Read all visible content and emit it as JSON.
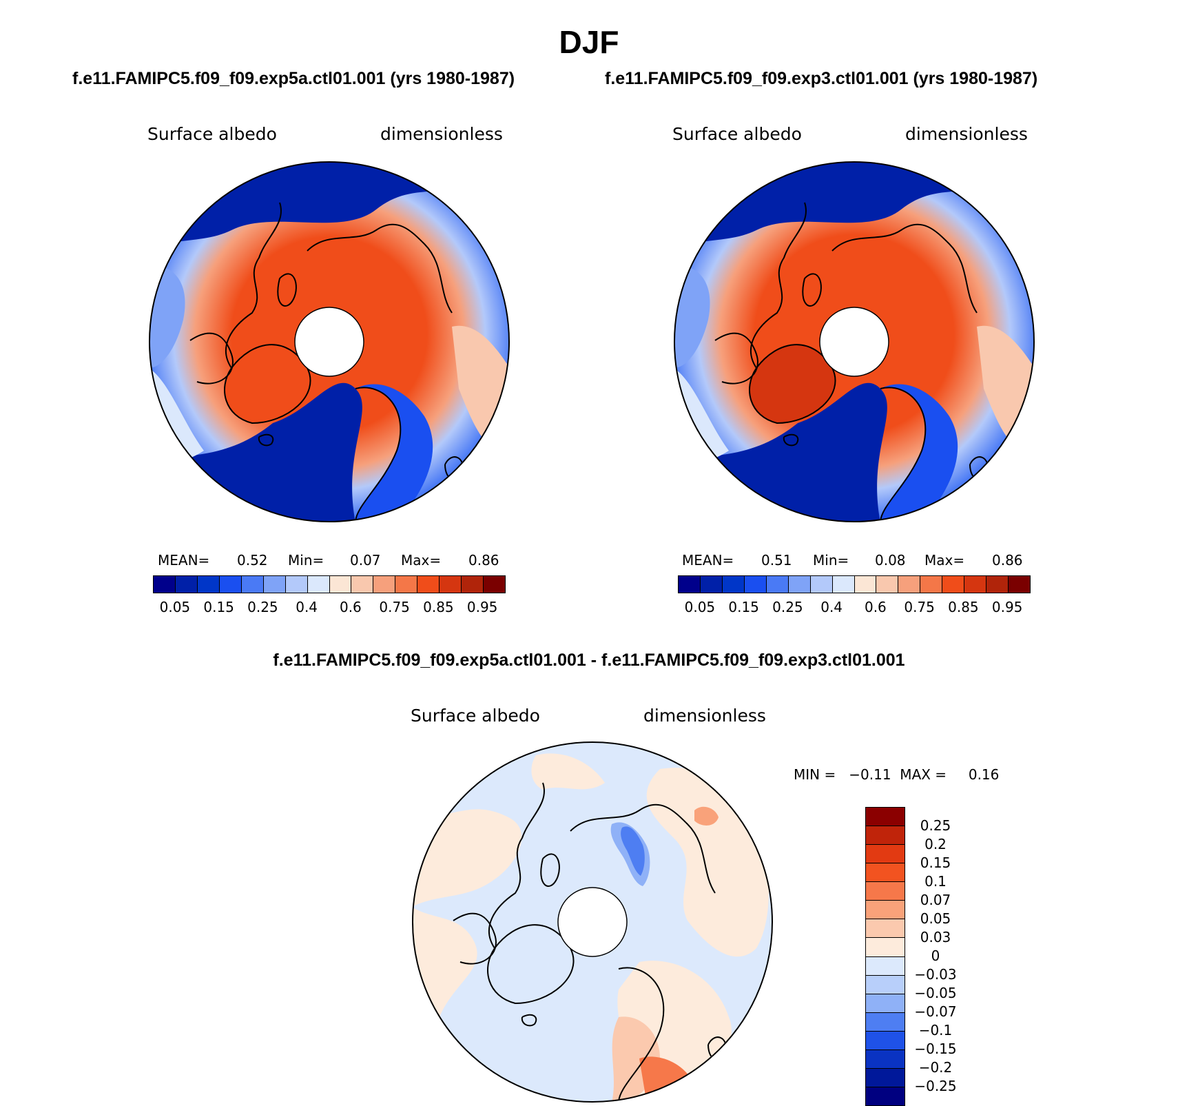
{
  "figure": {
    "season": "DJF",
    "diff_title": "f.e11.FAMIPC5.f09_f09.exp5a.ctl01.001 - f.e11.FAMIPC5.f09_f09.exp3.ctl01.001"
  },
  "panels": [
    {
      "case": "f.e11.FAMIPC5.f09_f09.exp5a.ctl01.001 (yrs 1980-1987)",
      "variable": "Surface albedo",
      "units": "dimensionless",
      "mean_label": "MEAN=",
      "mean": "0.52",
      "min_label": "Min=",
      "min": "0.07",
      "max_label": "Max=",
      "max": "0.86"
    },
    {
      "case": "f.e11.FAMIPC5.f09_f09.exp3.ctl01.001 (yrs 1980-1987)",
      "variable": "Surface albedo",
      "units": "dimensionless",
      "mean_label": "MEAN=",
      "mean": "0.51",
      "min_label": "Min=",
      "min": "0.08",
      "max_label": "Max=",
      "max": "0.86"
    }
  ],
  "diff_panel": {
    "variable": "Surface albedo",
    "units": "dimensionless",
    "stats": "MIN =   −0.11  MAX =     0.16"
  },
  "colorbar_abs": {
    "labels": [
      "0.05",
      "0.15",
      "0.25",
      "0.4",
      "0.6",
      "0.75",
      "0.85",
      "0.95"
    ],
    "colors": [
      "#00008b",
      "#0020a8",
      "#0036c8",
      "#1a4ff0",
      "#4a7af5",
      "#7fa3f7",
      "#b3c9fa",
      "#dbe8fc",
      "#fbe6d5",
      "#f9c8ae",
      "#f6a07c",
      "#f47748",
      "#f04d1a",
      "#d53610",
      "#b0240a",
      "#7a0000"
    ]
  },
  "colorbar_diff": {
    "labels": [
      "0.25",
      "0.2",
      "0.15",
      "0.1",
      "0.07",
      "0.05",
      "0.03",
      "0",
      "−0.03",
      "−0.05",
      "−0.07",
      "−0.1",
      "−0.15",
      "−0.2",
      "−0.25"
    ],
    "colors": [
      "#8b0000",
      "#c0240a",
      "#e23a12",
      "#f25320",
      "#f6784a",
      "#f9a27a",
      "#fbc9ae",
      "#fdebdc",
      "#dce9fc",
      "#b8cffa",
      "#8fb1f7",
      "#4e7ef2",
      "#1f52e8",
      "#0a33c2",
      "#00189a",
      "#000080"
    ]
  }
}
